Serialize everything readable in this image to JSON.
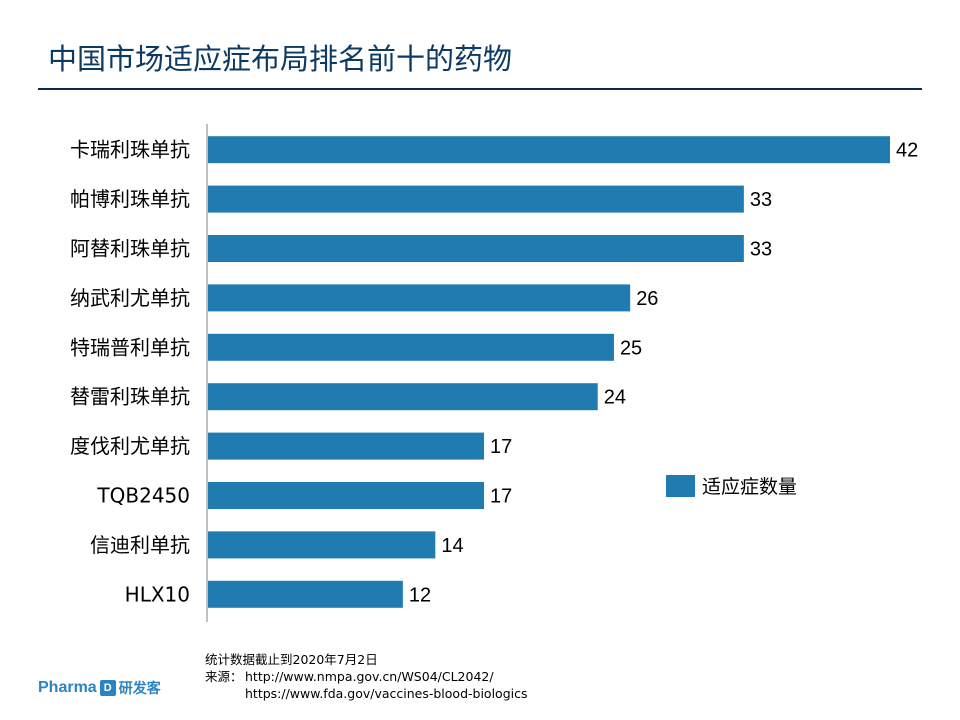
{
  "page": {
    "title": "中国市场适应症布局排名前十的药物"
  },
  "chart_data": {
    "type": "bar",
    "orientation": "horizontal",
    "categories": [
      "卡瑞利珠单抗",
      "帕博利珠单抗",
      "阿替利珠单抗",
      "纳武利尤单抗",
      "特瑞普利单抗",
      "替雷利珠单抗",
      "度伐利尤单抗",
      "TQB2450",
      "信迪利单抗",
      "HLX10"
    ],
    "series": [
      {
        "name": "适应症数量",
        "values": [
          42,
          33,
          33,
          26,
          25,
          24,
          17,
          17,
          14,
          12
        ]
      }
    ],
    "xlim": [
      0,
      42
    ],
    "grid": false,
    "legend_position": "right",
    "bar_color": "#1f7bb0"
  },
  "footnote": {
    "date_note": "统计数据截止到2020年7月2日",
    "source_label": "来源：",
    "source_url_1": "http://www.nmpa.gov.cn/WS04/CL2042/",
    "source_url_2": "https://www.fda.gov/vaccines-blood-biologics"
  },
  "logo": {
    "brand_en": "Pharma",
    "brand_mark": "D",
    "brand_cn": "研发客"
  }
}
